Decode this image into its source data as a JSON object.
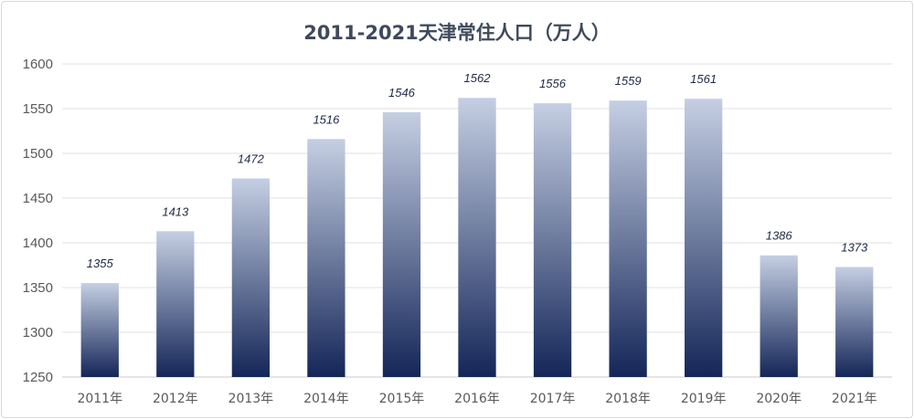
{
  "chart_data": {
    "type": "bar",
    "title": "2011-2021天津常住人口（万人）",
    "categories": [
      "2011年",
      "2012年",
      "2013年",
      "2014年",
      "2015年",
      "2016年",
      "2017年",
      "2018年",
      "2019年",
      "2020年",
      "2021年"
    ],
    "values": [
      1355,
      1413,
      1472,
      1516,
      1546,
      1562,
      1556,
      1559,
      1561,
      1386,
      1373
    ],
    "ylim": [
      1250,
      1600
    ],
    "yticks": [
      1250,
      1300,
      1350,
      1400,
      1450,
      1500,
      1550,
      1600
    ],
    "grid": true,
    "bar_gradient": {
      "top": "#c5cfe3",
      "bottom": "#142658"
    }
  }
}
